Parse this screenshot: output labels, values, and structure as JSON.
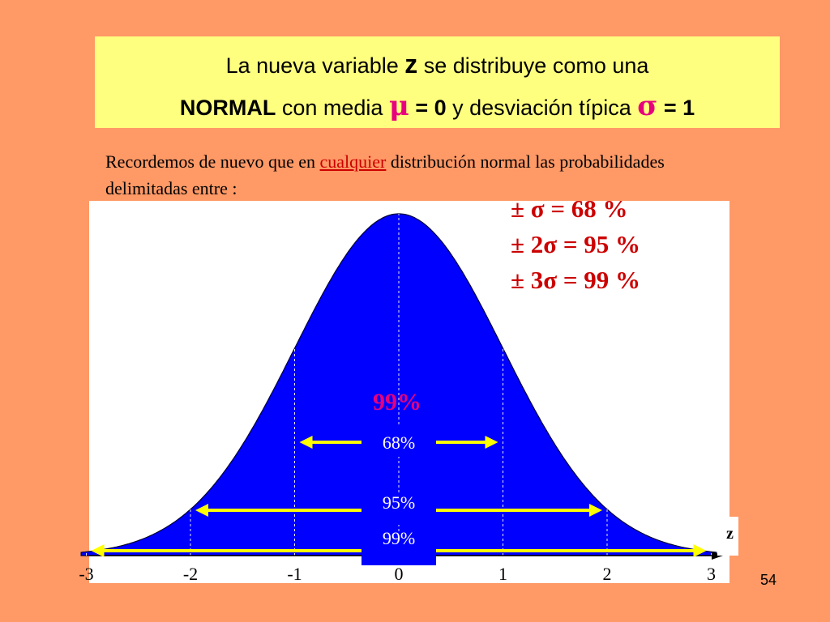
{
  "title": {
    "line1_prefix": "La nueva variable ",
    "line1_var": "z",
    "line1_suffix": " se distribuye como una",
    "line2_normal": "NORMAL",
    "line2_text1": " con media ",
    "line2_mu": "μ",
    "line2_eq1": " = 0",
    "line2_text2": "  y desviación típica ",
    "line2_sigma": "σ",
    "line2_eq2": " = 1"
  },
  "intro": {
    "part1": "Recordemos de nuevo que en ",
    "underlined": "cualquier",
    "part2": " distribución normal las probabilidades delimitadas entre  :"
  },
  "legend": [
    "± σ =  68 %",
    "± 2σ =  95 %",
    "± 3σ =  99 %"
  ],
  "chart_data": {
    "type": "area",
    "title": "",
    "xlabel": "z",
    "ylabel": "",
    "x_ticks": [
      "-3",
      "-2",
      "-1",
      "0",
      "1",
      "2",
      "3"
    ],
    "xlim": [
      -3,
      3
    ],
    "curve": "standard normal density",
    "bands": [
      {
        "label": "68%",
        "from": -1,
        "to": 1
      },
      {
        "label": "95%",
        "from": -2,
        "to": 2
      },
      {
        "label": "99%",
        "from": -3,
        "to": 3
      }
    ],
    "overlapping_label": "99%",
    "colors": {
      "fill": "#0000FF",
      "arrow": "#FFFF00",
      "overlapping_label": "#E6007E",
      "background": "#FFFFFF"
    }
  },
  "slide_number": "54"
}
